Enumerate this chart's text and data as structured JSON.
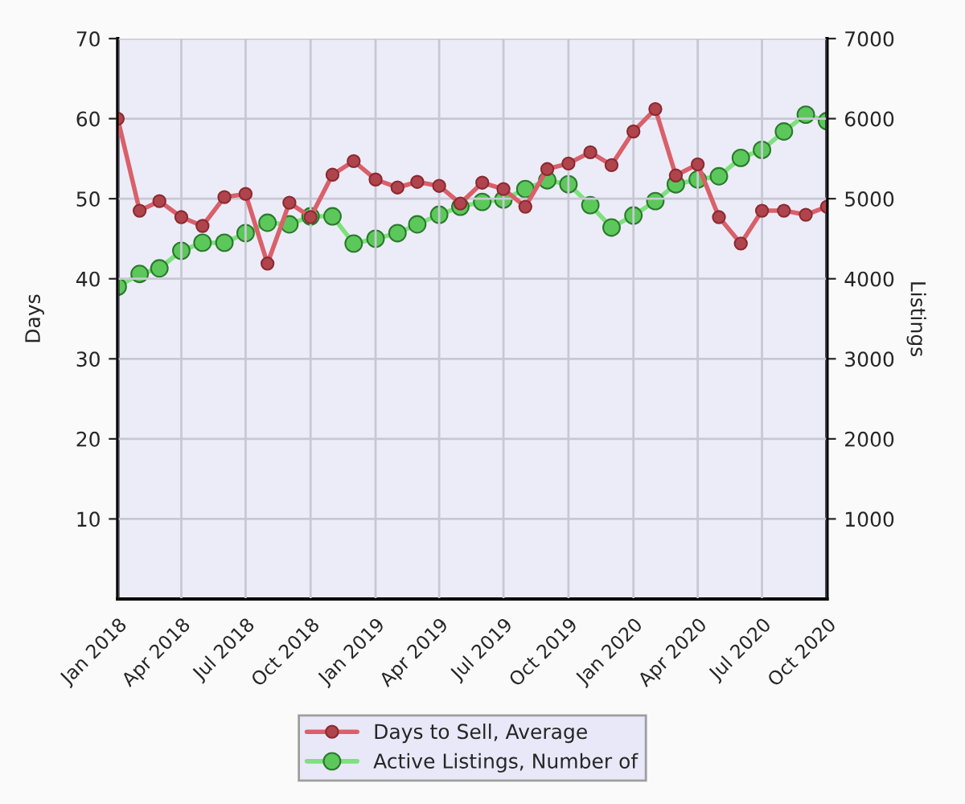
{
  "chart_data": {
    "type": "line",
    "ylabel": "Days",
    "y2label": "Listings",
    "x": [
      "2018-01",
      "2018-02",
      "2018-03",
      "2018-04",
      "2018-05",
      "2018-06",
      "2018-07",
      "2018-08",
      "2018-09",
      "2018-10",
      "2018-11",
      "2018-12",
      "2019-01",
      "2019-02",
      "2019-03",
      "2019-04",
      "2019-05",
      "2019-06",
      "2019-07",
      "2019-08",
      "2019-09",
      "2019-10",
      "2019-11",
      "2019-12",
      "2020-01",
      "2020-02",
      "2020-03",
      "2020-04",
      "2020-05",
      "2020-06",
      "2020-07",
      "2020-08",
      "2020-09",
      "2020-10"
    ],
    "series": [
      {
        "name": "Days to Sell, Average",
        "color": "#d9606a",
        "values": [
          60,
          48.5,
          49.7,
          47.7,
          46.6,
          50.2,
          50.6,
          41.9,
          49.5,
          47.7,
          53,
          54.7,
          52.4,
          51.4,
          52.1,
          51.6,
          49.4,
          52,
          51.2,
          49,
          53.7,
          54.4,
          55.8,
          54.2,
          58.4,
          61.2,
          52.9,
          54.3,
          47.7,
          44.4,
          48.5,
          48.5,
          48,
          49
        ]
      },
      {
        "name": "Active Listings, Number of",
        "color": "#7ee07e",
        "axis": "y2",
        "values": [
          3900,
          4060,
          4130,
          4350,
          4450,
          4450,
          4570,
          4700,
          4680,
          4780,
          4780,
          4440,
          4500,
          4570,
          4680,
          4800,
          4900,
          4960,
          4990,
          5120,
          5230,
          5180,
          4920,
          4640,
          4790,
          4970,
          5180,
          5240,
          5280,
          5510,
          5610,
          5840,
          6050,
          5970
        ]
      }
    ],
    "xlim": [
      "2018-01",
      "2020-10"
    ],
    "xticks": [
      {
        "value": "2018-01",
        "label": "Jan 2018"
      },
      {
        "value": "2018-04",
        "label": "Apr 2018"
      },
      {
        "value": "2018-07",
        "label": "Jul 2018"
      },
      {
        "value": "2018-10",
        "label": "Oct 2018"
      },
      {
        "value": "2019-01",
        "label": "Jan 2019"
      },
      {
        "value": "2019-04",
        "label": "Apr 2019"
      },
      {
        "value": "2019-07",
        "label": "Jul 2019"
      },
      {
        "value": "2019-10",
        "label": "Oct 2019"
      },
      {
        "value": "2020-01",
        "label": "Jan 2020"
      },
      {
        "value": "2020-04",
        "label": "Apr 2020"
      },
      {
        "value": "2020-07",
        "label": "Jul 2020"
      },
      {
        "value": "2020-10",
        "label": "Oct 2020"
      }
    ],
    "ylim": [
      0,
      70
    ],
    "yticks": [
      10,
      20,
      30,
      40,
      50,
      60,
      70
    ],
    "y2lim": [
      0,
      7000
    ],
    "y2ticks": [
      1000,
      2000,
      3000,
      4000,
      5000,
      6000,
      7000
    ],
    "grid": true,
    "legend": "bottom",
    "marker": "circle",
    "line_style": "solid"
  }
}
